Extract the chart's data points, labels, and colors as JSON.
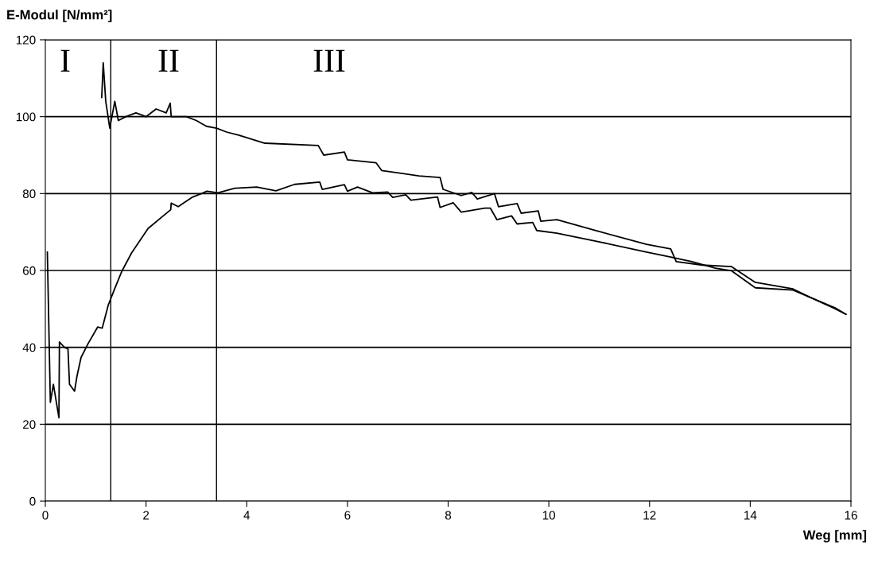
{
  "chart_data": {
    "type": "line",
    "ylabel": "E-Modul [N/mm²]",
    "xlabel": "Weg [mm]",
    "xlim": [
      0,
      16
    ],
    "xticks": [
      0,
      2,
      4,
      6,
      8,
      10,
      12,
      14,
      16
    ],
    "ylim": [
      0,
      120
    ],
    "yticks": [
      0,
      20,
      40,
      60,
      80,
      100,
      120
    ],
    "grid": "y",
    "marker": "none",
    "line_style": "solid",
    "ref_lines": [
      {
        "axis": "x",
        "value": 1.3,
        "color": "#000000"
      },
      {
        "axis": "x",
        "value": 3.4,
        "color": "#000000"
      }
    ],
    "annotations": [
      "I",
      "II",
      "III"
    ],
    "series": [
      {
        "color": "#000000",
        "x": [
          1.12,
          1.15,
          1.2,
          1.28,
          1.38,
          1.45,
          1.6,
          1.8,
          2.0,
          2.2,
          2.4,
          2.48,
          2.5,
          2.8,
          3.0,
          3.2,
          3.4,
          3.6,
          3.84,
          4.36,
          5.42,
          5.53,
          5.94,
          6.0,
          6.57,
          6.68,
          7.42,
          7.84,
          7.9,
          8.26,
          8.47,
          8.58,
          8.92,
          9.0,
          9.37,
          9.45,
          9.79,
          9.84,
          10.16,
          10.95,
          11.94,
          12.42,
          12.53,
          13.05,
          13.63,
          14.1,
          14.85,
          15.16,
          15.68,
          15.9
        ],
        "values": [
          105,
          114,
          104,
          97,
          104,
          99,
          100,
          101,
          100,
          102,
          101,
          103.5,
          100,
          100,
          99,
          97.5,
          97,
          96,
          95.2,
          93.1,
          92.5,
          90,
          90.8,
          88.8,
          88,
          86,
          84.6,
          84.2,
          81.1,
          79.5,
          80.3,
          78.6,
          80,
          76.6,
          77.4,
          74.9,
          75.5,
          72.8,
          73.2,
          70.3,
          66.8,
          65.6,
          62.3,
          61.4,
          61,
          56.9,
          55.2,
          53.2,
          50.1,
          48.6
        ]
      },
      {
        "color": "#000000",
        "x": [
          0.04,
          0.1,
          0.16,
          0.27,
          0.28,
          0.38,
          0.45,
          0.48,
          0.58,
          0.63,
          0.71,
          0.85,
          1.04,
          1.13,
          1.25,
          1.37,
          1.52,
          1.71,
          2.04,
          2.37,
          2.49,
          2.5,
          2.64,
          2.91,
          3.21,
          3.43,
          3.76,
          4.2,
          4.58,
          4.95,
          5.45,
          5.5,
          5.94,
          6.0,
          6.2,
          6.5,
          6.8,
          6.9,
          7.16,
          7.26,
          7.79,
          7.84,
          8.1,
          8.26,
          8.73,
          8.84,
          8.97,
          9.26,
          9.37,
          9.68,
          9.76,
          10.16,
          10.95,
          11.94,
          12.42,
          12.84,
          13.31,
          13.63,
          14.1,
          14.85,
          15.68,
          15.9
        ],
        "values": [
          64.8,
          25.7,
          30.4,
          21.7,
          41.4,
          40,
          39.6,
          30.4,
          28.6,
          32.6,
          37.4,
          41,
          45.3,
          45,
          51,
          55,
          59.8,
          64.5,
          70.9,
          74.5,
          75.8,
          77.5,
          76.6,
          79,
          80.6,
          80.2,
          81.4,
          81.7,
          80.7,
          82.4,
          83,
          81.1,
          82.3,
          80.6,
          81.7,
          80.2,
          80.4,
          79,
          79.7,
          78.3,
          79.1,
          76.4,
          77.6,
          75.2,
          76.2,
          76.2,
          73.2,
          74.2,
          72.1,
          72.5,
          70.4,
          69.7,
          67.6,
          64.8,
          63.5,
          62.3,
          60.6,
          59.9,
          55.5,
          54.9,
          50.3,
          48.6
        ]
      }
    ]
  }
}
